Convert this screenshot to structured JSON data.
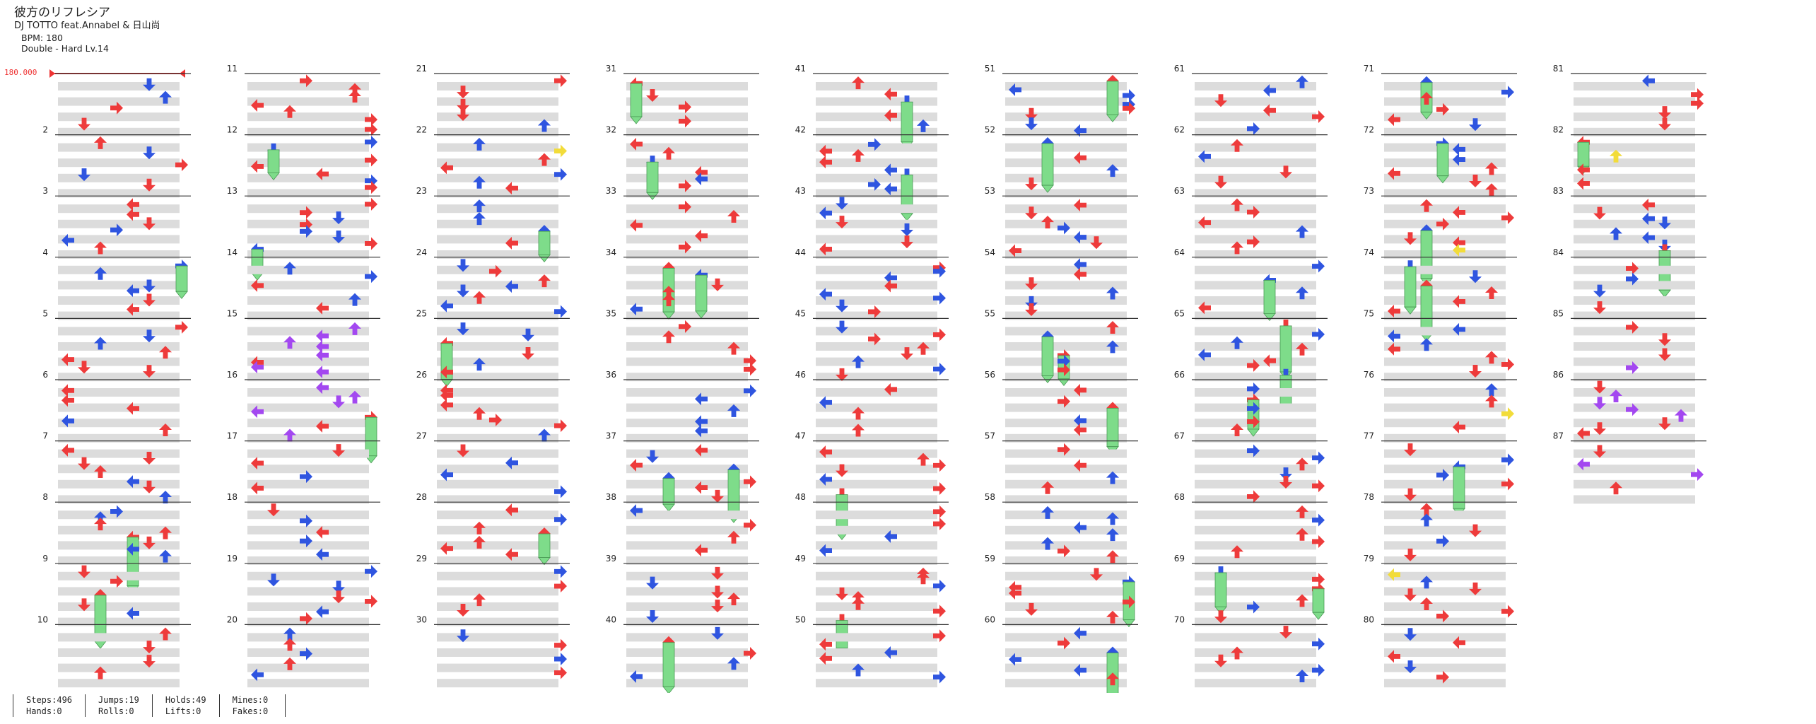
{
  "song": {
    "title": "彼方のリフレシア",
    "artist": "DJ TOTTO feat.Annabel & 日山尚",
    "bpm": "BPM: 180",
    "chart": "Double - Hard Lv.14"
  },
  "bpm_marker": "180.000",
  "measure_count": 87,
  "measures_per_column": 10,
  "colors": {
    "tap_red": "#ee3b3b",
    "tap_blue": "#2f55e0",
    "tap_purple": "#a348f0",
    "tap_yellow": "#f2dc3a",
    "hold_green": "#7edc8a",
    "band_gray": "#dcdcdc"
  },
  "stats": [
    {
      "line1": "Steps:496",
      "line2": "Hands:0"
    },
    {
      "line1": "Jumps:19",
      "line2": "Rolls:0"
    },
    {
      "line1": "Holds:49",
      "line2": "Lifts:0"
    },
    {
      "line1": "Mines:0",
      "line2": "Fakes:0"
    }
  ]
}
